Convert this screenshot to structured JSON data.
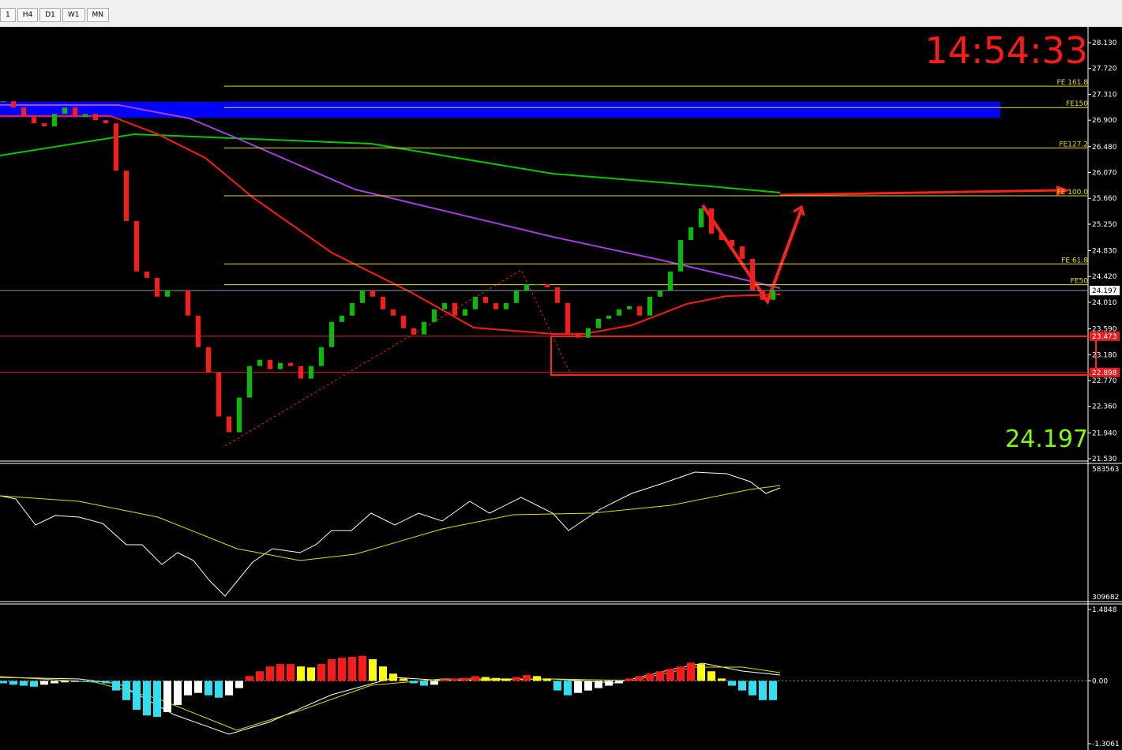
{
  "toolbar": {
    "tabs": [
      "1",
      "H4",
      "D1",
      "W1",
      "MN"
    ]
  },
  "main": {
    "clock": "14:54:33",
    "price": {
      "value": 24.197,
      "label": "24.197"
    },
    "ylim": [
      21.53,
      28.13
    ],
    "yticks": [
      {
        "value": 28.13,
        "label": "28.130"
      },
      {
        "value": 27.72,
        "label": "27.720"
      },
      {
        "value": 27.31,
        "label": "27.310"
      },
      {
        "value": 26.9,
        "label": "26.900"
      },
      {
        "value": 26.48,
        "label": "26.480"
      },
      {
        "value": 26.07,
        "label": "26.070"
      },
      {
        "value": 25.66,
        "label": "25.660"
      },
      {
        "value": 25.25,
        "label": "25.250"
      },
      {
        "value": 24.83,
        "label": "24.830"
      },
      {
        "value": 24.42,
        "label": "24.420"
      },
      {
        "value": 24.01,
        "label": "24.010"
      },
      {
        "value": 23.59,
        "label": "23.590"
      },
      {
        "value": 23.18,
        "label": "23.180"
      },
      {
        "value": 22.77,
        "label": "22.770"
      },
      {
        "value": 22.36,
        "label": "22.360"
      },
      {
        "value": 21.94,
        "label": "21.940"
      },
      {
        "value": 21.53,
        "label": "21.530"
      }
    ],
    "fe_levels": [
      {
        "value": 27.44,
        "label": "FE 161.8"
      },
      {
        "value": 27.1,
        "label": "FE150"
      },
      {
        "value": 26.46,
        "label": "FE127.2"
      },
      {
        "value": 25.7,
        "label": "FE 100.0"
      },
      {
        "value": 24.62,
        "label": "FE 61.8"
      },
      {
        "value": 24.29,
        "label": "FE50"
      }
    ],
    "zone_lines": [
      {
        "value": 23.473,
        "label": "23.473"
      },
      {
        "value": 22.898,
        "label": "22.898"
      }
    ],
    "closes": [
      27.2,
      27.1,
      26.95,
      26.85,
      26.8,
      27.0,
      27.1,
      26.95,
      27.0,
      26.9,
      26.85,
      26.1,
      25.3,
      24.5,
      24.4,
      24.1,
      24.2,
      24.2,
      23.8,
      23.3,
      22.9,
      22.2,
      21.95,
      22.5,
      23.0,
      23.1,
      22.95,
      23.05,
      23.0,
      22.8,
      23.0,
      23.3,
      23.7,
      23.8,
      24.0,
      24.2,
      24.1,
      23.9,
      23.8,
      23.6,
      23.5,
      23.7,
      23.9,
      24.0,
      23.8,
      23.9,
      24.1,
      24.0,
      23.9,
      24.0,
      24.2,
      24.3,
      24.3,
      24.25,
      24.0,
      23.5,
      23.45,
      23.6,
      23.75,
      23.8,
      23.9,
      23.95,
      23.8,
      24.1,
      24.2,
      24.5,
      25.0,
      25.2,
      25.5,
      25.1,
      25.0,
      24.9,
      24.7,
      24.2,
      24.05,
      24.197
    ]
  },
  "oscillator": {
    "ytop": "583563",
    "ybottom": "309682"
  },
  "macd": {
    "ylim": [
      -1.3061,
      1.4848
    ],
    "yticks": [
      1.4848,
      {
        "value": 0,
        "label": "0.00"
      },
      -1.3061
    ],
    "hist": [
      -0.05,
      -0.08,
      -0.1,
      -0.12,
      -0.08,
      -0.05,
      -0.03,
      -0.02,
      -0.02,
      -0.03,
      -0.05,
      -0.2,
      -0.4,
      -0.6,
      -0.72,
      -0.75,
      -0.65,
      -0.5,
      -0.3,
      -0.25,
      -0.3,
      -0.35,
      -0.3,
      -0.15,
      0.1,
      0.2,
      0.3,
      0.35,
      0.35,
      0.3,
      0.28,
      0.35,
      0.45,
      0.48,
      0.5,
      0.52,
      0.45,
      0.3,
      0.15,
      0.05,
      -0.05,
      -0.1,
      -0.08,
      0.03,
      0.05,
      0.06,
      0.1,
      0.08,
      0.06,
      0.05,
      0.08,
      0.12,
      0.1,
      0.05,
      -0.2,
      -0.3,
      -0.25,
      -0.2,
      -0.15,
      -0.1,
      -0.05,
      0.05,
      0.1,
      0.15,
      0.2,
      0.25,
      0.3,
      0.38,
      0.35,
      0.2,
      0.05,
      -0.1,
      -0.2,
      -0.3,
      -0.4,
      -0.4
    ]
  }
}
